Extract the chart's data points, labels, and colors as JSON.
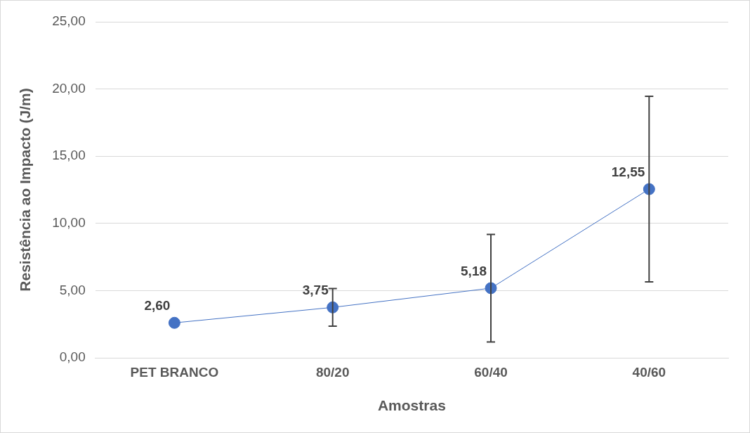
{
  "chart_data": {
    "type": "line",
    "xlabel": "Amostras",
    "ylabel": "Resistência ao Impacto (J/m)",
    "categories": [
      "PET BRANCO",
      "80/20",
      "60/40",
      "40/60"
    ],
    "series": [
      {
        "color": "#4472c4",
        "values": [
          2.6,
          3.75,
          5.18,
          12.55
        ],
        "errors": [
          null,
          1.4,
          4.0,
          6.9
        ],
        "value_labels": [
          "2,60",
          "3,75",
          "5,18",
          "12,55"
        ]
      }
    ],
    "ylim": [
      0,
      25
    ],
    "yticks": [
      {
        "value": 0,
        "label": "0,00"
      },
      {
        "value": 5,
        "label": "5,00"
      },
      {
        "value": 10,
        "label": "10,00"
      },
      {
        "value": 15,
        "label": "15,00"
      },
      {
        "value": 20,
        "label": "20,00"
      },
      {
        "value": 25,
        "label": "25,00"
      }
    ],
    "grid": "y",
    "marker": "circle",
    "line_style": "solid",
    "legend": false
  }
}
